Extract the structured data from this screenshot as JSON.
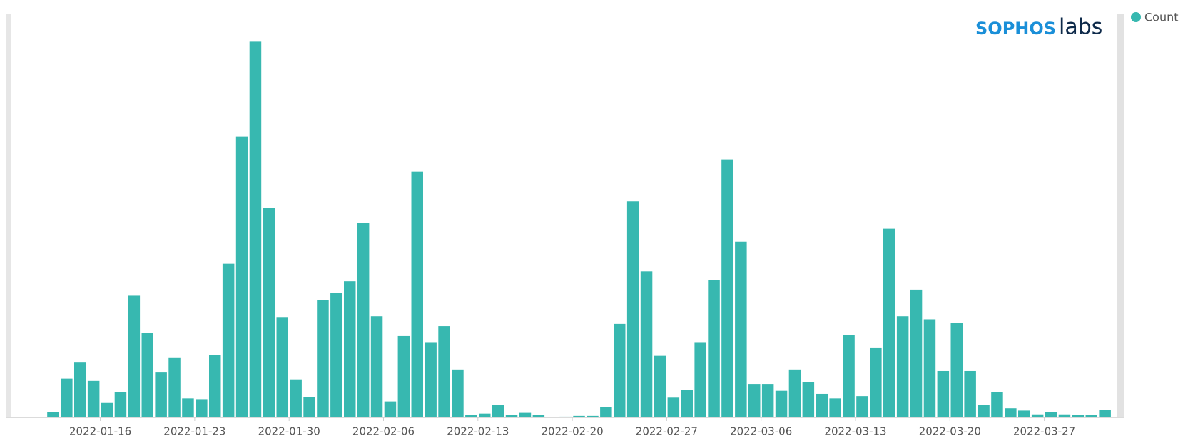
{
  "logo": {
    "brand": "SOPHOS",
    "suffix": "labs"
  },
  "chart_data": {
    "type": "bar",
    "categories": [
      null,
      null,
      null,
      null,
      "2022-01-16",
      null,
      null,
      null,
      null,
      null,
      null,
      "2022-01-23",
      null,
      null,
      null,
      null,
      null,
      null,
      "2022-01-30",
      null,
      null,
      null,
      null,
      null,
      null,
      "2022-02-06",
      null,
      null,
      null,
      null,
      null,
      null,
      "2022-02-13",
      null,
      null,
      null,
      null,
      null,
      null,
      "2022-02-20",
      null,
      null,
      null,
      null,
      null,
      null,
      "2022-02-27",
      null,
      null,
      null,
      null,
      null,
      null,
      "2022-03-06",
      null,
      null,
      null,
      null,
      null,
      null,
      "2022-03-13",
      null,
      null,
      null,
      null,
      null,
      null,
      "2022-03-20",
      null,
      null,
      null,
      null,
      null,
      null,
      "2022-03-27",
      null,
      null,
      null,
      null
    ],
    "series": [
      {
        "name": "Count",
        "color": "#37b8b0",
        "values": [
          7,
          51,
          73,
          48,
          19,
          33,
          160,
          111,
          59,
          79,
          25,
          24,
          82,
          202,
          369,
          494,
          275,
          132,
          50,
          27,
          154,
          164,
          179,
          256,
          133,
          21,
          107,
          323,
          99,
          120,
          63,
          3,
          5,
          16,
          3,
          6,
          3,
          0,
          1,
          2,
          2,
          14,
          123,
          284,
          192,
          81,
          26,
          36,
          99,
          181,
          339,
          231,
          44,
          44,
          35,
          63,
          46,
          31,
          25,
          108,
          28,
          92,
          248,
          133,
          168,
          129,
          61,
          124,
          61,
          16,
          33,
          12,
          9,
          4,
          7,
          4,
          3,
          3,
          10
        ]
      }
    ],
    "ylim": [
      0,
      530
    ],
    "legend": "top-right"
  }
}
